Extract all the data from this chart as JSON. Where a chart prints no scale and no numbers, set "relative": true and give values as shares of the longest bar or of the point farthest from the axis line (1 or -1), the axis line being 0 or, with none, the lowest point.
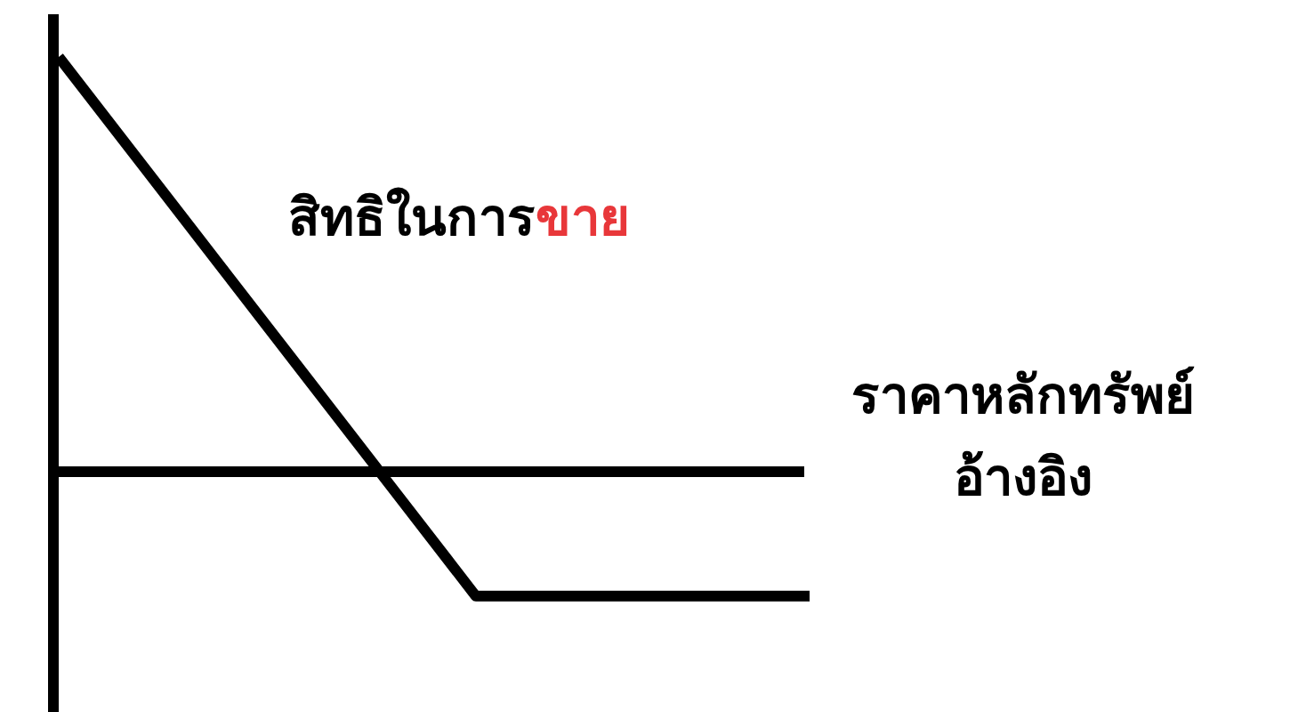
{
  "chart_data": {
    "type": "line",
    "relative": true,
    "categories": [
      null,
      null,
      null,
      null,
      null,
      null,
      null,
      null,
      null,
      null
    ],
    "series": [
      {
        "color": "#000000",
        "values": [
          1,
          0.74,
          0.48,
          0.22,
          -0.04,
          -0.3,
          -0.3,
          -0.3,
          -0.3,
          -0.3
        ]
      }
    ],
    "xlabel": "ราคาหลักทรัพย์ อ้างอิง",
    "annotations": [
      "สิทธิในการ",
      "ขาย"
    ],
    "marker": "none",
    "line_style": "solid"
  }
}
